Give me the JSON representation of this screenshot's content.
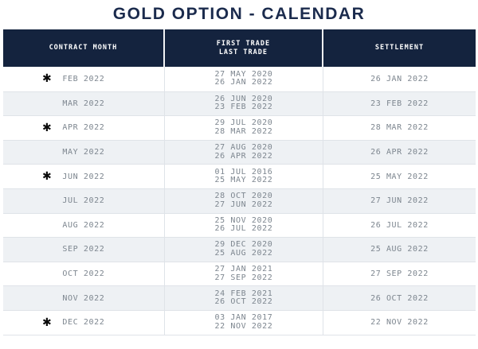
{
  "title": "GOLD OPTION - CALENDAR",
  "star_symbol": "✱",
  "colors": {
    "header_bg": "#14233e",
    "header_text": "#ffffff",
    "title_text": "#1b2b4d",
    "alt_row_bg": "#eef1f4",
    "body_text": "#7d868f",
    "border": "#dfe3e8",
    "star": "#0b0b0b"
  },
  "header": {
    "contract_month": "CONTRACT MONTH",
    "first_trade": "FIRST TRADE",
    "last_trade": "LAST TRADE",
    "settlement": "SETTLEMENT"
  },
  "rows": [
    {
      "starred": true,
      "contract_month": "FEB 2022",
      "first_trade": "27 MAY 2020",
      "last_trade": "26 JAN 2022",
      "settlement": "26 JAN 2022"
    },
    {
      "starred": false,
      "contract_month": "MAR 2022",
      "first_trade": "26 JUN 2020",
      "last_trade": "23 FEB 2022",
      "settlement": "23 FEB 2022"
    },
    {
      "starred": true,
      "contract_month": "APR 2022",
      "first_trade": "29 JUL 2020",
      "last_trade": "28 MAR 2022",
      "settlement": "28 MAR 2022"
    },
    {
      "starred": false,
      "contract_month": "MAY 2022",
      "first_trade": "27 AUG 2020",
      "last_trade": "26 APR 2022",
      "settlement": "26 APR 2022"
    },
    {
      "starred": true,
      "contract_month": "JUN 2022",
      "first_trade": "01 JUL 2016",
      "last_trade": "25 MAY 2022",
      "settlement": "25 MAY 2022"
    },
    {
      "starred": false,
      "contract_month": "JUL 2022",
      "first_trade": "28 OCT 2020",
      "last_trade": "27 JUN 2022",
      "settlement": "27 JUN 2022"
    },
    {
      "starred": false,
      "contract_month": "AUG 2022",
      "first_trade": "25 NOV 2020",
      "last_trade": "26 JUL 2022",
      "settlement": "26 JUL 2022"
    },
    {
      "starred": false,
      "contract_month": "SEP 2022",
      "first_trade": "29 DEC 2020",
      "last_trade": "25 AUG 2022",
      "settlement": "25 AUG 2022"
    },
    {
      "starred": false,
      "contract_month": "OCT 2022",
      "first_trade": "27 JAN 2021",
      "last_trade": "27 SEP 2022",
      "settlement": "27 SEP 2022"
    },
    {
      "starred": false,
      "contract_month": "NOV 2022",
      "first_trade": "24 FEB 2021",
      "last_trade": "26 OCT 2022",
      "settlement": "26 OCT 2022"
    },
    {
      "starred": true,
      "contract_month": "DEC 2022",
      "first_trade": "03 JAN 2017",
      "last_trade": "22 NOV 2022",
      "settlement": "22 NOV 2022"
    }
  ]
}
